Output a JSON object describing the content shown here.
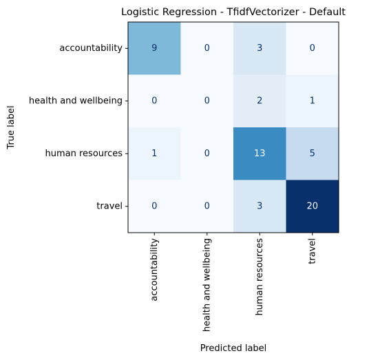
{
  "chart_data": {
    "type": "heatmap",
    "title": "Logistic Regression - TfidfVectorizer - Default",
    "xlabel": "Predicted label",
    "ylabel": "True label",
    "x_categories": [
      "accountability",
      "health and wellbeing",
      "human resources",
      "travel"
    ],
    "y_categories": [
      "accountability",
      "health and wellbeing",
      "human resources",
      "travel"
    ],
    "values": [
      [
        9,
        0,
        3,
        0
      ],
      [
        0,
        0,
        2,
        1
      ],
      [
        1,
        0,
        13,
        5
      ],
      [
        0,
        0,
        3,
        20
      ]
    ],
    "colormap": "Blues",
    "value_range": [
      0,
      20
    ],
    "colors": {
      "low": "#f7fbff",
      "high": "#08306b",
      "text_light": "#f7fbff",
      "text_dark": "#08306b"
    }
  }
}
